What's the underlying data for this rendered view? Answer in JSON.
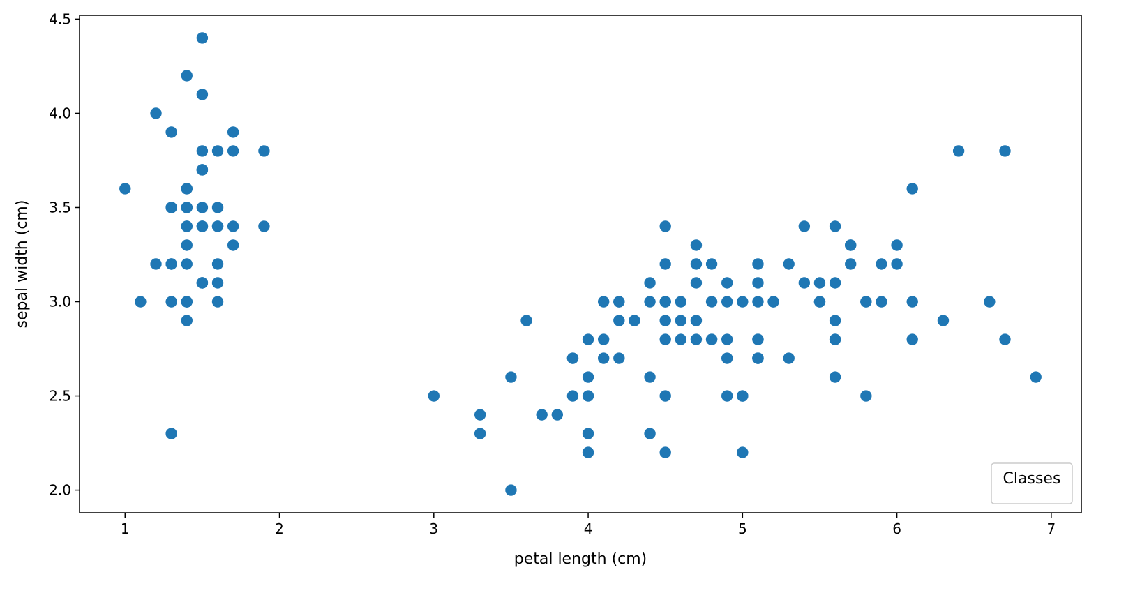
{
  "chart_data": {
    "type": "scatter",
    "title": "",
    "xlabel": "petal length (cm)",
    "ylabel": "sepal width (cm)",
    "xlim": [
      0.705,
      7.195
    ],
    "ylim": [
      1.88,
      4.52
    ],
    "xticks": [
      1,
      2,
      3,
      4,
      5,
      6,
      7
    ],
    "yticks": [
      2.0,
      2.5,
      3.0,
      3.5,
      4.0,
      4.5
    ],
    "xtick_labels": [
      "1",
      "2",
      "3",
      "4",
      "5",
      "6",
      "7"
    ],
    "ytick_labels": [
      "2.0",
      "2.5",
      "3.0",
      "3.5",
      "4.0",
      "4.5"
    ],
    "grid": false,
    "legend": {
      "title": "Classes",
      "placement": "lower-right",
      "entries": []
    },
    "marker_color": "#1f77b4",
    "series": [
      {
        "points": [
          [
            1.4,
            3.5
          ],
          [
            1.4,
            3.0
          ],
          [
            1.3,
            3.2
          ],
          [
            1.5,
            3.1
          ],
          [
            1.4,
            3.6
          ],
          [
            1.7,
            3.9
          ],
          [
            1.4,
            3.4
          ],
          [
            1.5,
            3.4
          ],
          [
            1.4,
            2.9
          ],
          [
            1.5,
            3.1
          ],
          [
            1.5,
            3.7
          ],
          [
            1.6,
            3.4
          ],
          [
            1.4,
            3.0
          ],
          [
            1.1,
            3.0
          ],
          [
            1.2,
            4.0
          ],
          [
            1.5,
            4.4
          ],
          [
            1.3,
            3.9
          ],
          [
            1.4,
            3.5
          ],
          [
            1.7,
            3.8
          ],
          [
            1.5,
            3.8
          ],
          [
            1.7,
            3.4
          ],
          [
            1.5,
            3.7
          ],
          [
            1.0,
            3.6
          ],
          [
            1.7,
            3.3
          ],
          [
            1.9,
            3.4
          ],
          [
            1.6,
            3.0
          ],
          [
            1.6,
            3.4
          ],
          [
            1.5,
            3.5
          ],
          [
            1.4,
            3.4
          ],
          [
            1.6,
            3.2
          ],
          [
            1.6,
            3.1
          ],
          [
            1.5,
            3.4
          ],
          [
            1.5,
            4.1
          ],
          [
            1.4,
            4.2
          ],
          [
            1.5,
            3.1
          ],
          [
            1.2,
            3.2
          ],
          [
            1.3,
            3.5
          ],
          [
            1.4,
            3.6
          ],
          [
            1.3,
            3.0
          ],
          [
            1.5,
            3.4
          ],
          [
            1.3,
            3.5
          ],
          [
            1.3,
            2.3
          ],
          [
            1.3,
            3.2
          ],
          [
            1.6,
            3.5
          ],
          [
            1.9,
            3.8
          ],
          [
            1.4,
            3.0
          ],
          [
            1.6,
            3.8
          ],
          [
            1.4,
            3.2
          ],
          [
            1.5,
            3.7
          ],
          [
            1.4,
            3.3
          ],
          [
            4.7,
            3.2
          ],
          [
            4.5,
            3.2
          ],
          [
            4.9,
            3.1
          ],
          [
            4.0,
            2.3
          ],
          [
            4.6,
            2.8
          ],
          [
            4.5,
            2.8
          ],
          [
            4.7,
            3.3
          ],
          [
            3.3,
            2.4
          ],
          [
            4.6,
            2.9
          ],
          [
            3.9,
            2.7
          ],
          [
            3.5,
            2.0
          ],
          [
            4.2,
            3.0
          ],
          [
            4.0,
            2.2
          ],
          [
            4.7,
            2.9
          ],
          [
            3.6,
            2.9
          ],
          [
            4.4,
            3.1
          ],
          [
            4.5,
            3.0
          ],
          [
            4.1,
            2.7
          ],
          [
            4.5,
            2.2
          ],
          [
            3.9,
            2.5
          ],
          [
            4.8,
            3.2
          ],
          [
            4.0,
            2.8
          ],
          [
            4.9,
            2.5
          ],
          [
            4.7,
            2.8
          ],
          [
            4.3,
            2.9
          ],
          [
            4.4,
            3.0
          ],
          [
            4.8,
            2.8
          ],
          [
            5.0,
            3.0
          ],
          [
            4.5,
            2.9
          ],
          [
            3.5,
            2.6
          ],
          [
            3.8,
            2.4
          ],
          [
            3.7,
            2.4
          ],
          [
            3.9,
            2.7
          ],
          [
            5.1,
            2.7
          ],
          [
            4.5,
            3.0
          ],
          [
            4.5,
            3.4
          ],
          [
            4.7,
            3.1
          ],
          [
            4.4,
            2.3
          ],
          [
            4.1,
            3.0
          ],
          [
            4.0,
            2.5
          ],
          [
            4.4,
            2.6
          ],
          [
            4.6,
            3.0
          ],
          [
            4.0,
            2.6
          ],
          [
            3.3,
            2.3
          ],
          [
            4.2,
            2.7
          ],
          [
            4.2,
            3.0
          ],
          [
            4.2,
            2.9
          ],
          [
            4.3,
            2.9
          ],
          [
            3.0,
            2.5
          ],
          [
            4.1,
            2.8
          ],
          [
            6.0,
            3.3
          ],
          [
            5.1,
            2.7
          ],
          [
            5.9,
            3.0
          ],
          [
            5.6,
            2.9
          ],
          [
            5.8,
            3.0
          ],
          [
            6.6,
            3.0
          ],
          [
            4.5,
            2.5
          ],
          [
            6.3,
            2.9
          ],
          [
            5.8,
            2.5
          ],
          [
            6.1,
            3.6
          ],
          [
            5.1,
            3.2
          ],
          [
            5.3,
            2.7
          ],
          [
            5.5,
            3.0
          ],
          [
            5.0,
            2.5
          ],
          [
            5.1,
            2.8
          ],
          [
            5.3,
            3.2
          ],
          [
            5.5,
            3.0
          ],
          [
            6.7,
            3.8
          ],
          [
            6.9,
            2.6
          ],
          [
            5.0,
            2.2
          ],
          [
            5.7,
            3.2
          ],
          [
            4.9,
            2.8
          ],
          [
            6.7,
            2.8
          ],
          [
            4.9,
            2.7
          ],
          [
            5.7,
            3.3
          ],
          [
            6.0,
            3.2
          ],
          [
            4.8,
            2.8
          ],
          [
            4.9,
            3.0
          ],
          [
            5.6,
            2.8
          ],
          [
            5.8,
            3.0
          ],
          [
            6.1,
            2.8
          ],
          [
            6.4,
            3.8
          ],
          [
            5.6,
            2.8
          ],
          [
            5.1,
            2.8
          ],
          [
            5.6,
            2.6
          ],
          [
            6.1,
            3.0
          ],
          [
            5.6,
            3.4
          ],
          [
            5.5,
            3.1
          ],
          [
            4.8,
            3.0
          ],
          [
            5.4,
            3.1
          ],
          [
            5.6,
            3.1
          ],
          [
            5.1,
            3.1
          ],
          [
            5.1,
            2.7
          ],
          [
            5.9,
            3.2
          ],
          [
            5.7,
            3.3
          ],
          [
            5.2,
            3.0
          ],
          [
            5.0,
            2.5
          ],
          [
            5.2,
            3.0
          ],
          [
            5.4,
            3.4
          ],
          [
            5.1,
            3.0
          ]
        ]
      }
    ]
  }
}
